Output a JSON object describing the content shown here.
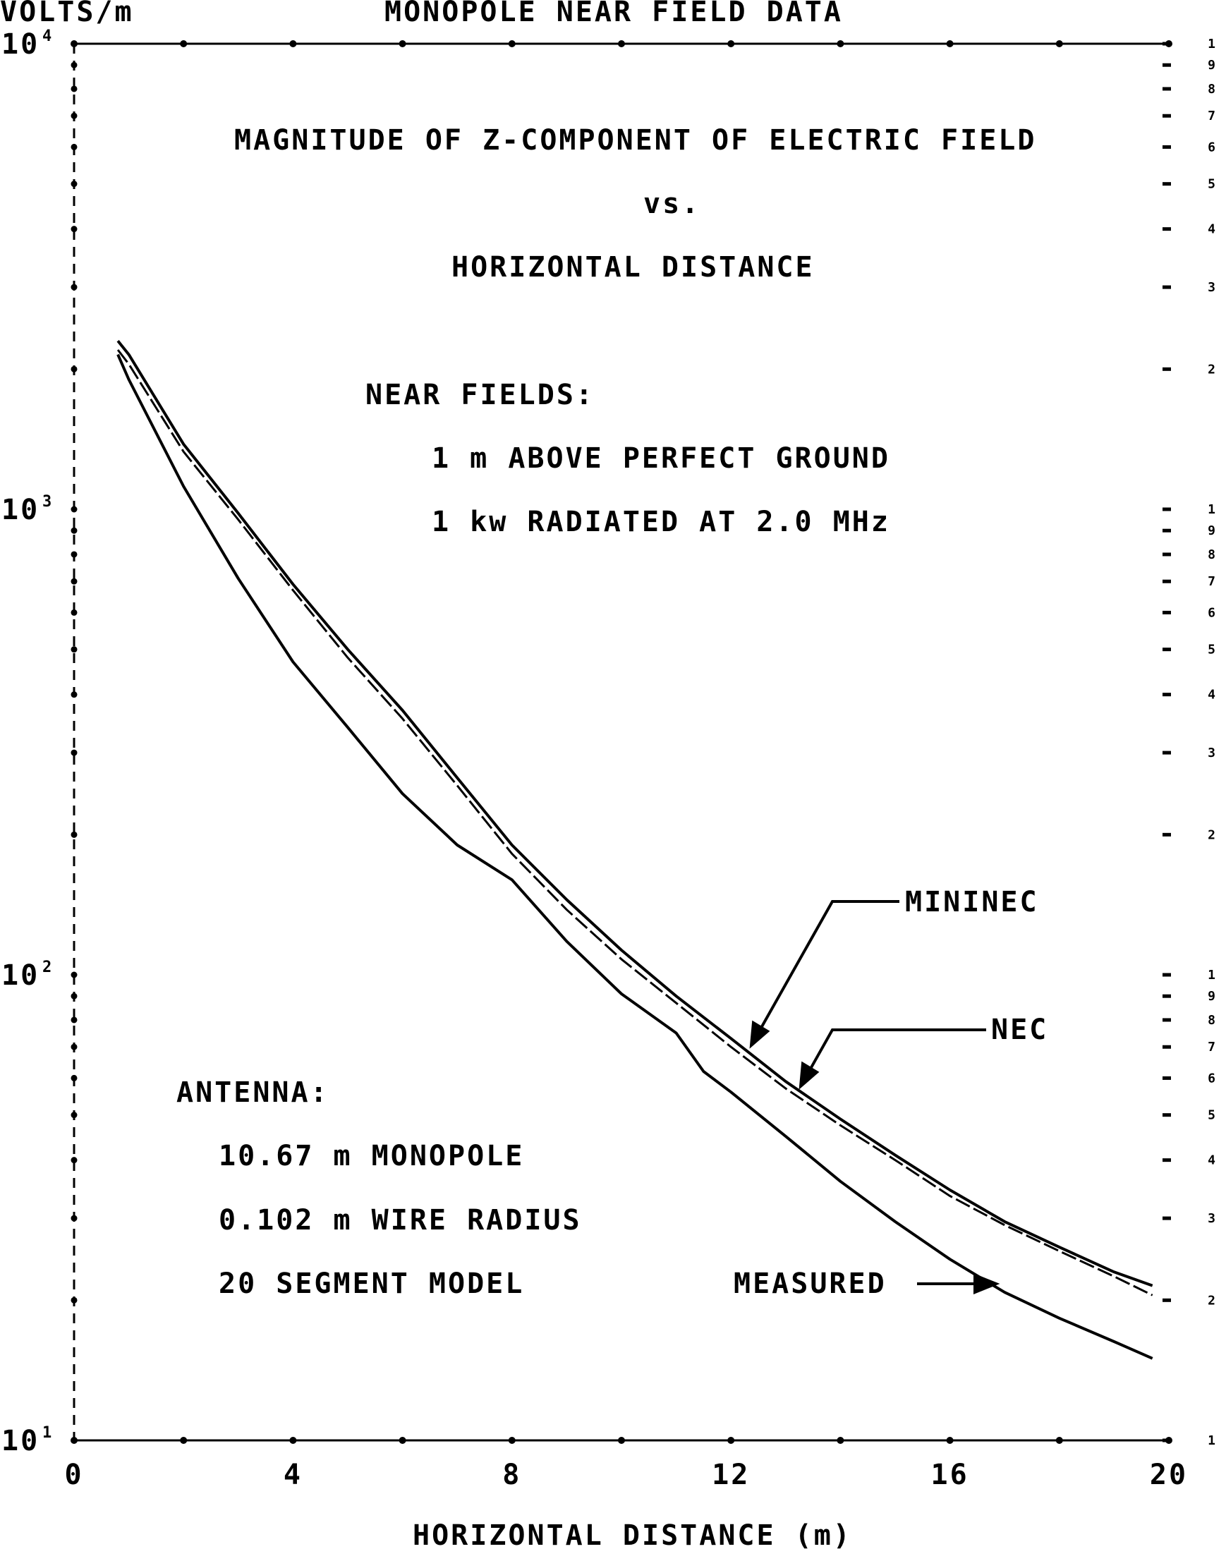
{
  "chart_data": {
    "type": "line",
    "title": "MONOPOLE NEAR FIELD DATA",
    "subtitle_lines": [
      "MAGNITUDE OF Z-COMPONENT OF ELECTRIC FIELD",
      "vs.",
      "HORIZONTAL DISTANCE"
    ],
    "ylabel": "VOLTS/m",
    "xlabel": "HORIZONTAL DISTANCE (m)",
    "xlim": [
      0,
      20
    ],
    "ylim": [
      10,
      10000
    ],
    "yscale": "log",
    "xticks": [
      0,
      4,
      8,
      12,
      16,
      20
    ],
    "xtick_labels": [
      "0",
      "4",
      "8",
      "12",
      "16",
      "20"
    ],
    "yticks": [
      {
        "base": "10",
        "exp": "4",
        "value": 10000
      },
      {
        "base": "10",
        "exp": "3",
        "value": 1000
      },
      {
        "base": "10",
        "exp": "2",
        "value": 100
      },
      {
        "base": "10",
        "exp": "1",
        "value": 10
      }
    ],
    "right_axis_digits": [
      "1",
      "9",
      "8",
      "7",
      "6",
      "5",
      "4",
      "3",
      "2",
      "1"
    ],
    "grid": false,
    "annotations": {
      "near_fields": [
        "NEAR FIELDS:",
        "1 m ABOVE PERFECT GROUND",
        "1 kw RADIATED AT 2.0 MHz"
      ],
      "antenna": [
        "ANTENNA:",
        "10.67 m MONOPOLE",
        "0.102 m WIRE RADIUS",
        "20 SEGMENT MODEL"
      ]
    },
    "series": [
      {
        "name": "MININEC",
        "x": [
          0.8,
          1,
          2,
          3,
          4,
          5,
          6,
          7,
          8,
          9,
          10,
          11,
          12,
          13,
          14,
          15,
          16,
          17,
          18,
          19,
          19.7
        ],
        "y": [
          2300,
          2150,
          1380,
          980,
          690,
          500,
          370,
          265,
          190,
          145,
          113,
          90,
          73,
          59,
          49,
          41,
          34.5,
          29.5,
          26,
          23,
          21.5
        ]
      },
      {
        "name": "NEC",
        "x": [
          0.8,
          1,
          2,
          3,
          4,
          5,
          6,
          7,
          8,
          9,
          10,
          11,
          12,
          13,
          14,
          15,
          16,
          17,
          18,
          19,
          19.7
        ],
        "y": [
          2200,
          2050,
          1330,
          950,
          670,
          480,
          355,
          255,
          182,
          138,
          108,
          87,
          70,
          57,
          47.5,
          40,
          33.5,
          29,
          25.5,
          22.5,
          20.5
        ]
      },
      {
        "name": "MEASURED",
        "x": [
          0.8,
          1,
          2,
          3,
          4,
          5,
          6,
          7,
          8,
          9,
          10,
          11,
          11.5,
          12,
          13,
          14,
          15,
          16,
          17,
          18,
          19,
          19.7
        ],
        "y": [
          2150,
          1900,
          1120,
          710,
          470,
          340,
          245,
          190,
          160,
          118,
          91,
          75,
          62,
          56,
          45,
          36,
          29.5,
          24.5,
          20.8,
          18.3,
          16.3,
          15
        ]
      }
    ],
    "series_labels": [
      "MININEC",
      "NEC",
      "MEASURED"
    ]
  }
}
